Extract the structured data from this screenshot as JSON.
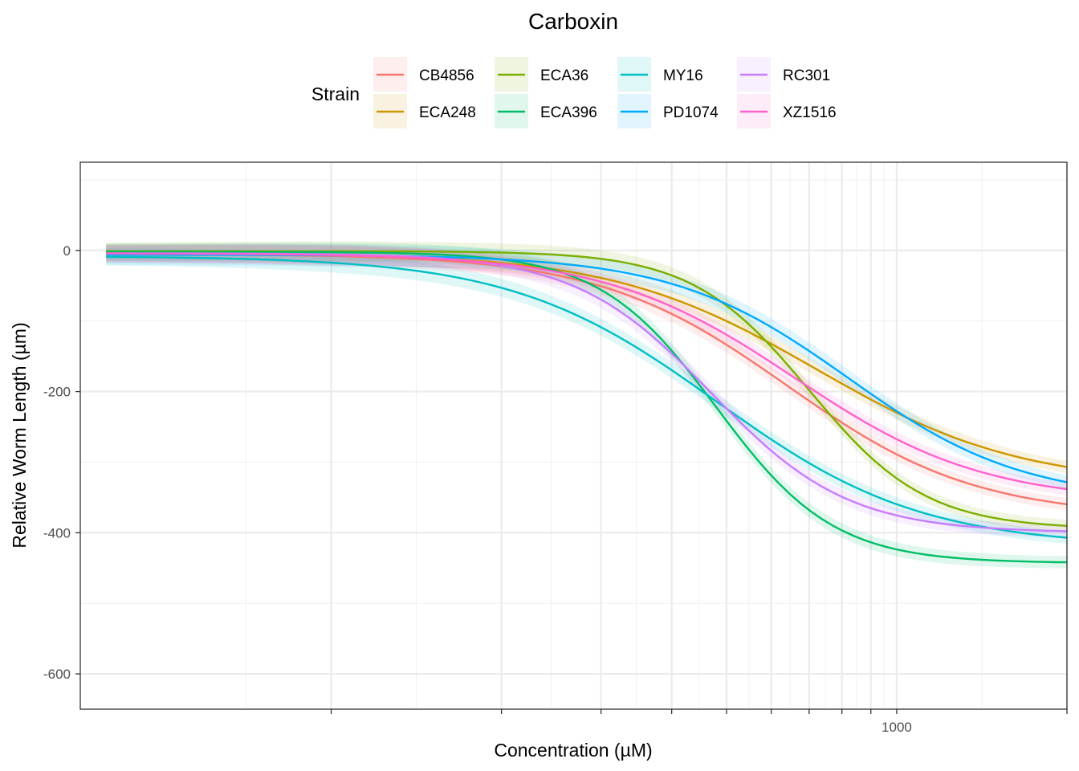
{
  "chart_data": {
    "type": "line",
    "title": "Carboxin",
    "xlabel": "Concentration (µM)",
    "ylabel": "Relative Worm Length (µm)",
    "x_scale": "log10",
    "xlim": [
      36,
      2000
    ],
    "ylim": [
      -650,
      125
    ],
    "x_ticks": [
      100,
      200,
      300,
      400,
      500,
      600,
      700,
      800,
      900,
      1000,
      2000
    ],
    "x_tick_labels": [
      "",
      "",
      "",
      "",
      "",
      "",
      "",
      "",
      "",
      "1000",
      ""
    ],
    "y_ticks": [
      0,
      -200,
      -400,
      -600
    ],
    "y_tick_labels": [
      "0",
      "-200",
      "-400",
      "-600"
    ],
    "grid": true,
    "legend": {
      "title": "Strain",
      "position": "top",
      "entries": [
        "CB4856",
        "ECA248",
        "ECA36",
        "ECA396",
        "MY16",
        "PD1074",
        "RC301",
        "XZ1516"
      ]
    },
    "x": [
      40,
      2000
    ],
    "series": [
      {
        "name": "CB4856",
        "color": "#F8766D",
        "top": -5,
        "bottom": -378,
        "ec50": 640,
        "hill": 2.6,
        "ci": 12
      },
      {
        "name": "ECA248",
        "color": "#CD9600",
        "top": -3,
        "bottom": -333,
        "ec50": 720,
        "hill": 2.4,
        "ci": 12
      },
      {
        "name": "ECA36",
        "color": "#7CAE00",
        "top": -1,
        "bottom": -395,
        "ec50": 700,
        "hill": 4.2,
        "ci": 12
      },
      {
        "name": "ECA396",
        "color": "#00BE67",
        "top": -2,
        "bottom": -443,
        "ec50": 480,
        "hill": 4.2,
        "ci": 12
      },
      {
        "name": "MY16",
        "color": "#00BFC4",
        "top": -8,
        "bottom": -420,
        "ec50": 480,
        "hill": 2.4,
        "ci": 12
      },
      {
        "name": "PD1074",
        "color": "#00A9FF",
        "top": -6,
        "bottom": -355,
        "ec50": 820,
        "hill": 2.8,
        "ci": 14
      },
      {
        "name": "RC301",
        "color": "#C77CFF",
        "top": -4,
        "bottom": -400,
        "ec50": 470,
        "hill": 3.6,
        "ci": 12
      },
      {
        "name": "XZ1516",
        "color": "#FF61CC",
        "top": -4,
        "bottom": -357,
        "ec50": 660,
        "hill": 2.6,
        "ci": 12
      }
    ]
  }
}
